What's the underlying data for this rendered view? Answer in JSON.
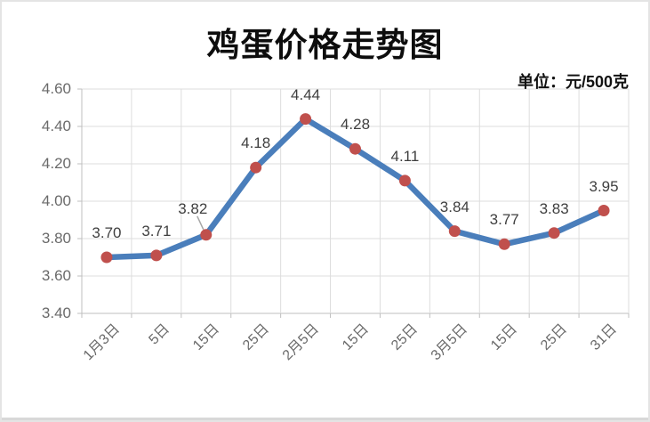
{
  "window": {
    "background": "#FFFFFF",
    "edge_color": "#D8D8D8"
  },
  "chart_data": {
    "type": "line",
    "title": "鸡蛋价格走势图",
    "unit_label": "单位：元/500克",
    "categories": [
      "1月3日",
      "5日",
      "15日",
      "25日",
      "2月5日",
      "15日",
      "25日",
      "3月5日",
      "15日",
      "25日",
      "31日"
    ],
    "values": [
      3.7,
      3.71,
      3.82,
      4.18,
      4.44,
      4.28,
      4.11,
      3.84,
      3.77,
      3.83,
      3.95
    ],
    "data_labels": [
      "3.70",
      "3.71",
      "3.82",
      "4.18",
      "4.44",
      "4.28",
      "4.11",
      "3.84",
      "3.77",
      "3.83",
      "3.95"
    ],
    "leader_label_index": 2,
    "y_ticks": [
      "3.40",
      "3.60",
      "3.80",
      "4.00",
      "4.20",
      "4.40",
      "4.60"
    ],
    "ylim": [
      3.4,
      4.6
    ],
    "xlabel": "",
    "ylabel": "",
    "grid": true,
    "legend": "none",
    "colors": {
      "line": "#4A7EBB",
      "marker": "#C0504D",
      "gridline": "#DDDDDD",
      "axis": "#BFBFBF",
      "tick_label": "#6A6A6A",
      "data_label": "#3F3F3F",
      "title": "#0D0D0D",
      "leader": "#A6A6A6"
    }
  }
}
